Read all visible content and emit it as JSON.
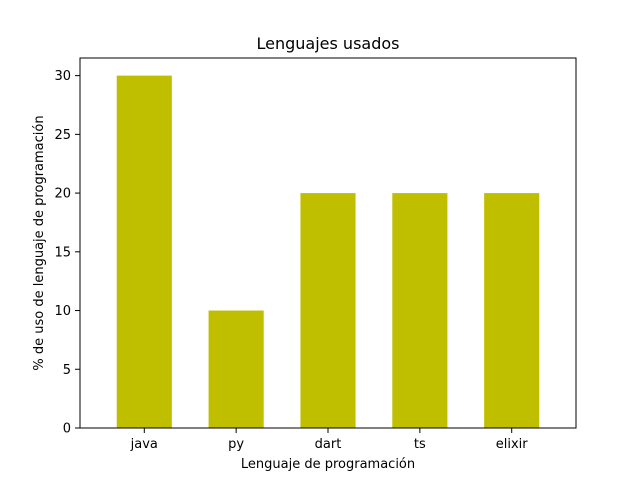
{
  "chart_data": {
    "type": "bar",
    "title": "Lenguajes usados",
    "xlabel": "Lenguaje de programación",
    "ylabel": "% de uso de lenguaje de programación",
    "categories": [
      "java",
      "py",
      "dart",
      "ts",
      "elixir"
    ],
    "values": [
      30,
      10,
      20,
      20,
      20
    ],
    "ylim": [
      0,
      31.5
    ],
    "yticks": [
      0,
      5,
      10,
      15,
      20,
      25,
      30
    ],
    "bar_color": "#bfbf00",
    "grid": false,
    "legend": "none"
  }
}
